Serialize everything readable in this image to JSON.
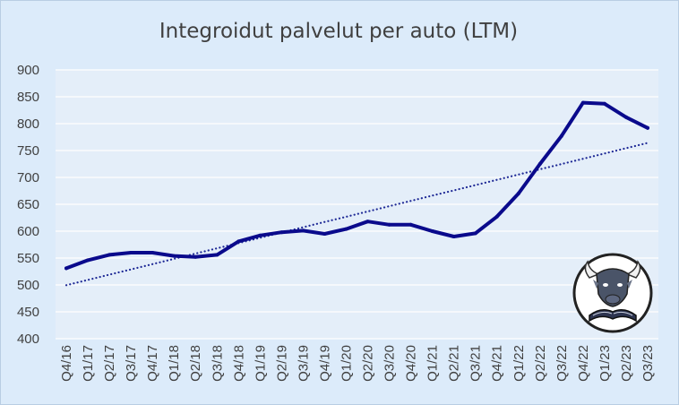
{
  "chart_data": {
    "type": "line",
    "title": "Integroidut palvelut per auto (LTM)",
    "xlabel": "",
    "ylabel": "",
    "ylim": [
      400,
      900
    ],
    "yticks": [
      400,
      450,
      500,
      550,
      600,
      650,
      700,
      750,
      800,
      850,
      900
    ],
    "categories": [
      "Q4/16",
      "Q1/17",
      "Q2/17",
      "Q3/17",
      "Q4/17",
      "Q1/18",
      "Q2/18",
      "Q3/18",
      "Q4/18",
      "Q1/19",
      "Q2/19",
      "Q3/19",
      "Q4/19",
      "Q1/20",
      "Q2/20",
      "Q3/20",
      "Q4/20",
      "Q1/21",
      "Q2/21",
      "Q3/21",
      "Q4/21",
      "Q1/22",
      "Q2/22",
      "Q3/22",
      "Q4/22",
      "Q1/23",
      "Q2/23",
      "Q3/23"
    ],
    "series": [
      {
        "style": "solid",
        "color": "#0a0a8c",
        "values": [
          531,
          546,
          556,
          560,
          560,
          554,
          552,
          556,
          581,
          592,
          598,
          601,
          595,
          604,
          618,
          612,
          612,
          600,
          590,
          596,
          627,
          670,
          725,
          777,
          839,
          837,
          812,
          792
        ]
      },
      {
        "style": "dotted-trendline",
        "color": "#1f2a96",
        "values": [
          499.5,
          509.3,
          519.1,
          528.9,
          538.7,
          548.5,
          558.3,
          568.1,
          577.9,
          587.7,
          597.5,
          607.3,
          617.1,
          626.9,
          636.7,
          646.5,
          656.3,
          666.1,
          675.9,
          685.7,
          695.5,
          705.3,
          715.1,
          724.9,
          734.7,
          744.5,
          754.3,
          764.1
        ]
      }
    ],
    "grid": "horizontal",
    "legend": "none",
    "colors": {
      "background": "#dcebfa",
      "plot_bg": "#e4eef9",
      "grid": "#ffffff"
    }
  },
  "logo": {
    "name": "bull-reading-book-logo"
  }
}
